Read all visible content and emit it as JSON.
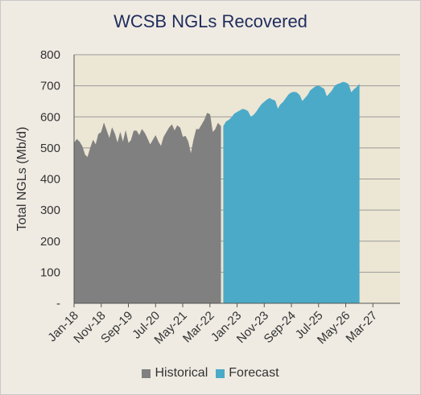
{
  "chart_data": {
    "type": "area",
    "title": "WCSB NGLs Recovered",
    "ylabel": "Total NGLs (Mb/d)",
    "ylim": [
      0,
      800
    ],
    "yticks": [
      "-",
      "100",
      "200",
      "300",
      "400",
      "500",
      "600",
      "700",
      "800"
    ],
    "xticks": [
      "Jan-18",
      "Nov-18",
      "Sep-19",
      "Jul-20",
      "May-21",
      "Mar-22",
      "Jan-23",
      "Nov-23",
      "Sep-24",
      "Jul-25",
      "May-26",
      "Mar-27"
    ],
    "x_start": "Jan-18",
    "x_step": "month",
    "series": [
      {
        "name": "Historical",
        "color": "#808080",
        "x_start": "Jan-18",
        "values": [
          515,
          528,
          520,
          505,
          478,
          470,
          500,
          525,
          510,
          545,
          550,
          580,
          555,
          530,
          565,
          545,
          515,
          550,
          518,
          555,
          515,
          525,
          555,
          555,
          540,
          560,
          548,
          530,
          510,
          525,
          540,
          520,
          505,
          535,
          550,
          565,
          575,
          555,
          572,
          565,
          535,
          538,
          520,
          480,
          525,
          560,
          560,
          575,
          590,
          612,
          608,
          550,
          560,
          580,
          570
        ]
      },
      {
        "name": "Forecast",
        "color": "#4aaac8",
        "x_start": "Aug-22",
        "values": [
          570,
          585,
          590,
          598,
          610,
          615,
          620,
          625,
          623,
          618,
          600,
          605,
          615,
          628,
          640,
          648,
          655,
          660,
          655,
          652,
          625,
          640,
          648,
          660,
          672,
          678,
          680,
          678,
          670,
          650,
          660,
          670,
          685,
          692,
          698,
          700,
          695,
          690,
          665,
          675,
          685,
          700,
          705,
          708,
          712,
          710,
          705,
          678,
          688,
          695,
          705
        ]
      }
    ],
    "legend": [
      "Historical",
      "Forecast"
    ],
    "legend_position": "bottom",
    "plot_background": "#ece6d4"
  }
}
